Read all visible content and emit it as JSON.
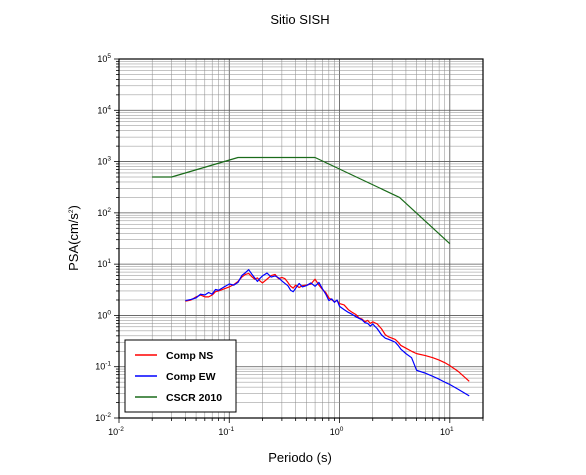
{
  "chart_data": {
    "type": "line",
    "title": "Sitio SISH",
    "xlabel": "Periodo (s)",
    "ylabel": "PSA(cm/s",
    "ylabel_sup": "2",
    "ylabel_close": ")",
    "x_scale": "log",
    "y_scale": "log",
    "xlim": [
      0.01,
      20
    ],
    "ylim": [
      0.01,
      100000
    ],
    "grid": true,
    "legend_position": "bottom-left",
    "x_ticks": [
      {
        "base": "10",
        "exp": "-2",
        "value": 0.01
      },
      {
        "base": "10",
        "exp": "-1",
        "value": 0.1
      },
      {
        "base": "10",
        "exp": "0",
        "value": 1
      },
      {
        "base": "10",
        "exp": "1",
        "value": 10
      }
    ],
    "y_ticks": [
      {
        "base": "10",
        "exp": "-2",
        "value": 0.01
      },
      {
        "base": "10",
        "exp": "-1",
        "value": 0.1
      },
      {
        "base": "10",
        "exp": "0",
        "value": 1
      },
      {
        "base": "10",
        "exp": "1",
        "value": 10
      },
      {
        "base": "10",
        "exp": "2",
        "value": 100
      },
      {
        "base": "10",
        "exp": "3",
        "value": 1000
      },
      {
        "base": "10",
        "exp": "4",
        "value": 10000
      },
      {
        "base": "10",
        "exp": "5",
        "value": 100000
      }
    ],
    "series": [
      {
        "name": "Comp NS",
        "color": "#ff0000",
        "points": [
          [
            0.04,
            1.9
          ],
          [
            0.045,
            2.0
          ],
          [
            0.05,
            2.3
          ],
          [
            0.055,
            2.5
          ],
          [
            0.06,
            2.3
          ],
          [
            0.065,
            2.3
          ],
          [
            0.07,
            2.5
          ],
          [
            0.075,
            2.9
          ],
          [
            0.08,
            3.0
          ],
          [
            0.09,
            3.3
          ],
          [
            0.1,
            3.6
          ],
          [
            0.11,
            4.0
          ],
          [
            0.12,
            4.6
          ],
          [
            0.13,
            5.6
          ],
          [
            0.14,
            6.3
          ],
          [
            0.15,
            6.6
          ],
          [
            0.16,
            5.7
          ],
          [
            0.17,
            5.1
          ],
          [
            0.18,
            5.4
          ],
          [
            0.19,
            4.7
          ],
          [
            0.2,
            4.3
          ],
          [
            0.22,
            5.1
          ],
          [
            0.24,
            6.0
          ],
          [
            0.26,
            6.3
          ],
          [
            0.28,
            5.2
          ],
          [
            0.3,
            5.5
          ],
          [
            0.32,
            5.2
          ],
          [
            0.34,
            4.4
          ],
          [
            0.36,
            3.7
          ],
          [
            0.38,
            3.4
          ],
          [
            0.4,
            3.9
          ],
          [
            0.43,
            3.5
          ],
          [
            0.46,
            3.8
          ],
          [
            0.5,
            3.9
          ],
          [
            0.55,
            4.1
          ],
          [
            0.6,
            5.1
          ],
          [
            0.65,
            3.9
          ],
          [
            0.7,
            3.2
          ],
          [
            0.75,
            2.8
          ],
          [
            0.8,
            2.2
          ],
          [
            0.9,
            1.85
          ],
          [
            0.95,
            1.95
          ],
          [
            1.0,
            1.7
          ],
          [
            1.1,
            1.6
          ],
          [
            1.2,
            1.3
          ],
          [
            1.3,
            1.15
          ],
          [
            1.4,
            1.05
          ],
          [
            1.5,
            0.9
          ],
          [
            1.6,
            0.85
          ],
          [
            1.7,
            0.75
          ],
          [
            1.8,
            0.8
          ],
          [
            1.9,
            0.7
          ],
          [
            2.0,
            0.75
          ],
          [
            2.2,
            0.68
          ],
          [
            2.4,
            0.55
          ],
          [
            2.6,
            0.42
          ],
          [
            2.8,
            0.38
          ],
          [
            3.0,
            0.36
          ],
          [
            3.2,
            0.34
          ],
          [
            3.4,
            0.3
          ],
          [
            3.6,
            0.26
          ],
          [
            4.0,
            0.23
          ],
          [
            4.5,
            0.2
          ],
          [
            5.0,
            0.18
          ],
          [
            6.0,
            0.165
          ],
          [
            7.0,
            0.15
          ],
          [
            8.0,
            0.135
          ],
          [
            9.0,
            0.12
          ],
          [
            10.0,
            0.105
          ],
          [
            12.0,
            0.08
          ],
          [
            15.0,
            0.052
          ]
        ]
      },
      {
        "name": "Comp EW",
        "color": "#0000ff",
        "points": [
          [
            0.04,
            1.95
          ],
          [
            0.045,
            2.05
          ],
          [
            0.05,
            2.2
          ],
          [
            0.055,
            2.6
          ],
          [
            0.06,
            2.5
          ],
          [
            0.065,
            2.8
          ],
          [
            0.07,
            2.6
          ],
          [
            0.075,
            3.2
          ],
          [
            0.08,
            3.1
          ],
          [
            0.09,
            3.6
          ],
          [
            0.1,
            4.1
          ],
          [
            0.11,
            3.9
          ],
          [
            0.12,
            4.4
          ],
          [
            0.13,
            6.0
          ],
          [
            0.14,
            6.8
          ],
          [
            0.15,
            7.8
          ],
          [
            0.16,
            6.4
          ],
          [
            0.17,
            5.4
          ],
          [
            0.18,
            4.6
          ],
          [
            0.19,
            5.3
          ],
          [
            0.2,
            5.9
          ],
          [
            0.22,
            6.7
          ],
          [
            0.24,
            5.6
          ],
          [
            0.26,
            5.9
          ],
          [
            0.28,
            5.4
          ],
          [
            0.3,
            4.7
          ],
          [
            0.32,
            4.2
          ],
          [
            0.34,
            3.8
          ],
          [
            0.36,
            3.1
          ],
          [
            0.38,
            2.9
          ],
          [
            0.4,
            3.4
          ],
          [
            0.43,
            4.2
          ],
          [
            0.46,
            3.6
          ],
          [
            0.5,
            3.8
          ],
          [
            0.55,
            4.3
          ],
          [
            0.6,
            3.7
          ],
          [
            0.65,
            4.4
          ],
          [
            0.7,
            3.3
          ],
          [
            0.75,
            2.6
          ],
          [
            0.8,
            1.95
          ],
          [
            0.85,
            2.1
          ],
          [
            0.9,
            1.8
          ],
          [
            0.95,
            2.0
          ],
          [
            1.0,
            1.5
          ],
          [
            1.1,
            1.3
          ],
          [
            1.2,
            1.15
          ],
          [
            1.3,
            1.05
          ],
          [
            1.4,
            0.95
          ],
          [
            1.5,
            0.88
          ],
          [
            1.6,
            0.82
          ],
          [
            1.7,
            0.72
          ],
          [
            1.8,
            0.7
          ],
          [
            1.9,
            0.62
          ],
          [
            2.0,
            0.68
          ],
          [
            2.2,
            0.55
          ],
          [
            2.4,
            0.42
          ],
          [
            2.6,
            0.36
          ],
          [
            2.8,
            0.34
          ],
          [
            3.0,
            0.32
          ],
          [
            3.2,
            0.3
          ],
          [
            3.4,
            0.26
          ],
          [
            3.6,
            0.22
          ],
          [
            4.0,
            0.18
          ],
          [
            4.5,
            0.15
          ],
          [
            5.0,
            0.085
          ],
          [
            6.0,
            0.075
          ],
          [
            7.0,
            0.065
          ],
          [
            8.0,
            0.057
          ],
          [
            9.0,
            0.05
          ],
          [
            10.0,
            0.045
          ],
          [
            12.0,
            0.036
          ],
          [
            15.0,
            0.027
          ]
        ]
      },
      {
        "name": "CSCR 2010",
        "color": "#1a6b1a",
        "points": [
          [
            0.02,
            500
          ],
          [
            0.03,
            500
          ],
          [
            0.12,
            1200
          ],
          [
            0.6,
            1200
          ],
          [
            3.5,
            200
          ],
          [
            10.0,
            25
          ]
        ]
      }
    ]
  }
}
